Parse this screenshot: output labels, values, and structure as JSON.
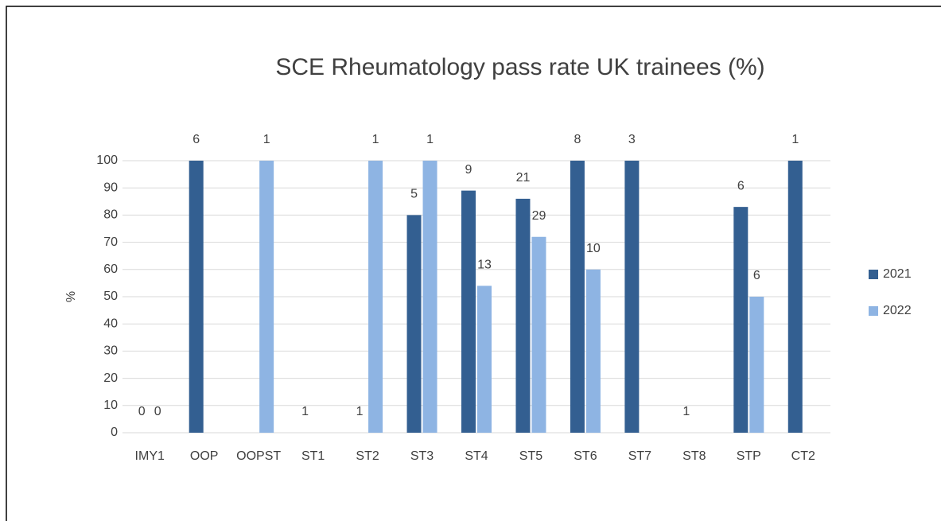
{
  "chart_data": {
    "type": "bar",
    "title": "SCE Rheumatology pass rate UK trainees (%)",
    "y_label": "%",
    "categories": [
      "IMY1",
      "OOP",
      "OOPST",
      "ST1",
      "ST2",
      "ST3",
      "ST4",
      "ST5",
      "ST6",
      "ST7",
      "ST8",
      "STP",
      "CT2"
    ],
    "series": [
      {
        "name": "2021",
        "color": "#335f91",
        "values": [
          0,
          100,
          null,
          0,
          0,
          80,
          89,
          86,
          100,
          100,
          0,
          83,
          100
        ],
        "counts": [
          0,
          6,
          null,
          1,
          1,
          5,
          9,
          21,
          8,
          3,
          1,
          6,
          1
        ]
      },
      {
        "name": "2022",
        "color": "#8eb4e3",
        "values": [
          0,
          null,
          100,
          null,
          100,
          100,
          54,
          72,
          60,
          null,
          null,
          50,
          null
        ],
        "counts": [
          0,
          null,
          1,
          null,
          1,
          1,
          13,
          29,
          10,
          null,
          null,
          6,
          null
        ]
      }
    ],
    "ylim": [
      0,
      100
    ],
    "yticks": [
      0,
      10,
      20,
      30,
      40,
      50,
      60,
      70,
      80,
      90,
      100
    ],
    "grid": true,
    "legend": "right"
  }
}
